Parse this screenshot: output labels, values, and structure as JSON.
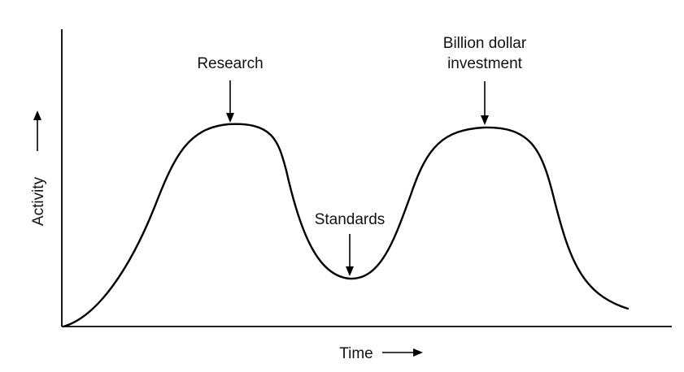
{
  "diagram": {
    "labels": {
      "research": "Research",
      "standards": "Standards",
      "billion_line1": "Billion dollar",
      "billion_line2": "investment"
    },
    "axes": {
      "x_label": "Time",
      "y_label": "Activity"
    }
  }
}
